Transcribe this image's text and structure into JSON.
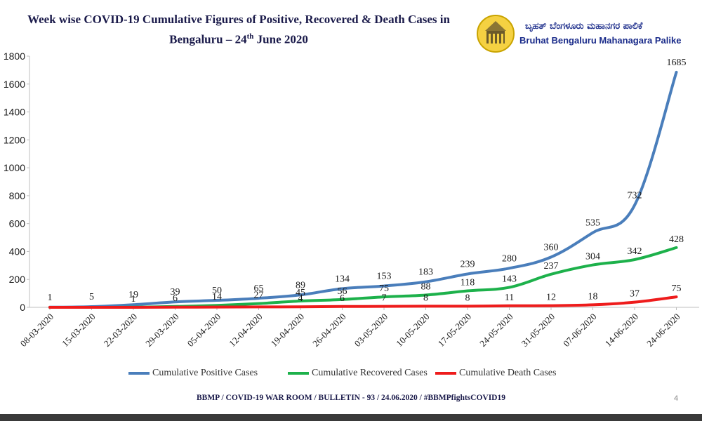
{
  "header": {
    "title_line1": "Week wise COVID-19 Cumulative Figures of Positive,  Recovered  & Death Cases in",
    "title_line2_prefix": "Bengaluru – 24",
    "title_line2_sup": "th",
    "title_line2_suffix": " June 2020",
    "logo_text_kannada": "ಬೃಹತ್ ಬೆಂಗಳೂರು ಮಹಾನಗರ ಪಾಲಿಕೆ",
    "logo_text_english": "Bruhat Bengaluru Mahanagara Palike"
  },
  "footer": {
    "text": "BBMP / COVID-19 WAR ROOM / BULLETIN - 93 / 24.06.2020 / #BBMPfightsCOVID19",
    "page_number": "4"
  },
  "colors": {
    "positive": "#4a7ebb",
    "recovered": "#1db14b",
    "death": "#ee1c1c",
    "axis": "#bfbfbf",
    "label": "#1a1a1a"
  },
  "chart_data": {
    "type": "line",
    "title": "Week wise COVID-19 Cumulative Figures of Positive,  Recovered  & Death Cases in Bengaluru – 24th June 2020",
    "x": [
      "08-03-2020",
      "15-03-2020",
      "22-03-2020",
      "29-03-2020",
      "05-04-2020",
      "12-04-2020",
      "19-04-2020",
      "26-04-2020",
      "03-05-2020",
      "10-05-2020",
      "17-05-2020",
      "24-05-2020",
      "31-05-2020",
      "07-06-2020",
      "14-06-2020",
      "24-06-2020"
    ],
    "yticks": [
      0,
      200,
      400,
      600,
      800,
      1000,
      1200,
      1400,
      1600,
      1800
    ],
    "ylim": [
      0,
      1800
    ],
    "legend_position": "bottom",
    "grid": false,
    "series": [
      {
        "name": "Cumulative Positive Cases",
        "key": "positive",
        "values": [
          1,
          5,
          19,
          39,
          50,
          65,
          89,
          134,
          153,
          183,
          239,
          280,
          360,
          535,
          732,
          1685
        ],
        "labels": [
          "1",
          "5",
          "19",
          "39",
          "50",
          "65",
          "89",
          "134",
          "153",
          "183",
          "239",
          "280",
          "360",
          "535",
          "732",
          "1685"
        ]
      },
      {
        "name": "Cumulative Recovered Cases",
        "key": "recovered",
        "values": [
          0,
          0,
          1,
          6,
          14,
          27,
          45,
          56,
          75,
          88,
          118,
          143,
          237,
          304,
          342,
          428
        ],
        "labels": [
          "",
          "",
          "1",
          "6",
          "14",
          "27",
          "45",
          "56",
          "75",
          "88",
          "118",
          "143",
          "237",
          "304",
          "342",
          "428"
        ]
      },
      {
        "name": "Cumulative Death Cases",
        "key": "death",
        "values": [
          0,
          0,
          0,
          1,
          2,
          3,
          4,
          6,
          7,
          8,
          8,
          11,
          12,
          18,
          37,
          75
        ],
        "labels": [
          "",
          "",
          "",
          "",
          "",
          "",
          "4",
          "6",
          "7",
          "8",
          "8",
          "11",
          "12",
          "18",
          "37",
          "75"
        ]
      }
    ]
  }
}
